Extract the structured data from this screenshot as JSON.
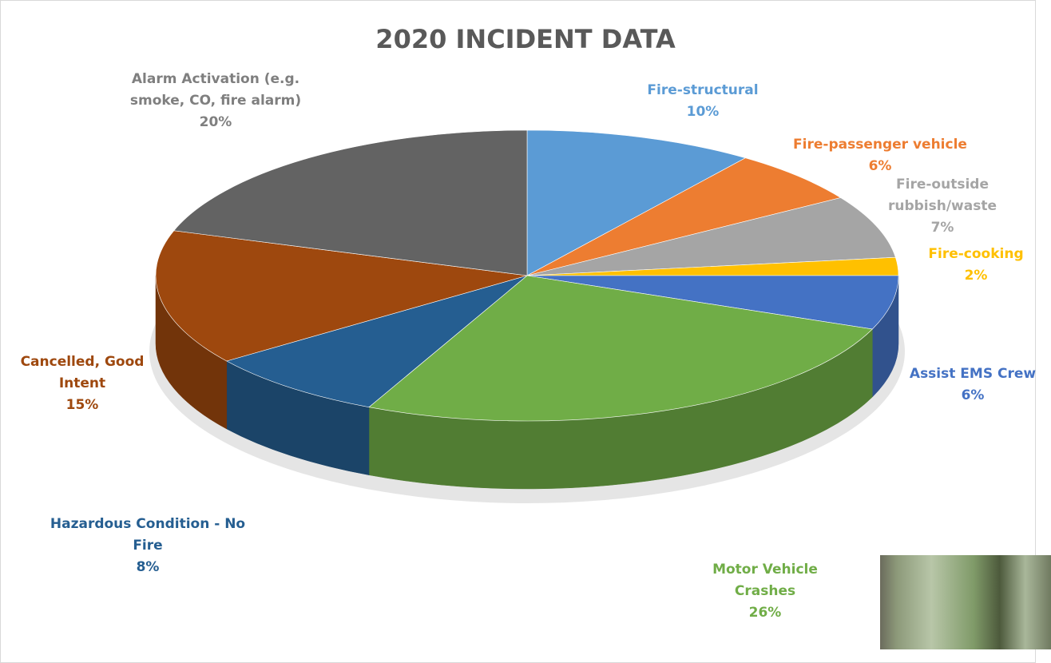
{
  "chart_data": {
    "type": "pie",
    "title": "2020 INCIDENT DATA",
    "categories": [
      "Fire-structural",
      "Fire-passenger vehicle",
      "Fire-outside rubbish/waste",
      "Fire-cooking",
      "Assist EMS Crew",
      "Motor Vehicle Crashes",
      "Hazardous Condition - No Fire",
      "Cancelled, Good Intent",
      "Alarm Activation (e.g. smoke, CO, fire alarm)"
    ],
    "values": [
      10,
      6,
      7,
      2,
      6,
      26,
      8,
      15,
      20
    ],
    "value_labels": [
      "10%",
      "6%",
      "7%",
      "2%",
      "6%",
      "26%",
      "8%",
      "15%",
      "20%"
    ],
    "colors": [
      "#5b9bd5",
      "#ed7d31",
      "#a5a5a5",
      "#ffc000",
      "#4472c4",
      "#70ad47",
      "#255e91",
      "#9e480e",
      "#636363"
    ]
  }
}
